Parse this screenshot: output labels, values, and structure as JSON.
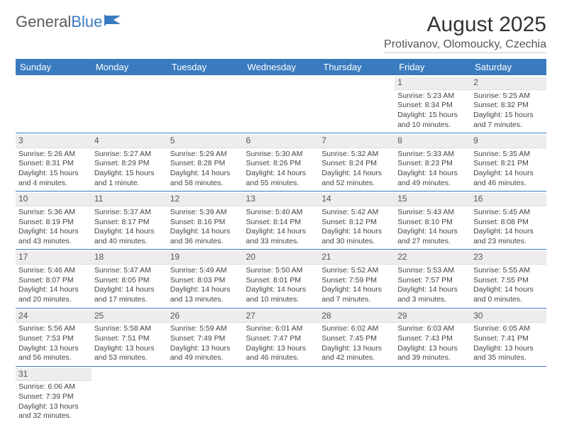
{
  "logo": {
    "text1": "General",
    "text2": "Blue"
  },
  "title": "August 2025",
  "location": "Protivanov, Olomoucky, Czechia",
  "colors": {
    "header_bg": "#3a7bbf",
    "header_text": "#ffffff",
    "daynum_bg": "#ededed",
    "row_border": "#3a7bbf",
    "body_text": "#444444",
    "page_bg": "#ffffff"
  },
  "typography": {
    "title_fontsize": 30,
    "location_fontsize": 16,
    "weekday_fontsize": 13,
    "cell_fontsize": 10.5,
    "daynum_fontsize": 12
  },
  "weekdays": [
    "Sunday",
    "Monday",
    "Tuesday",
    "Wednesday",
    "Thursday",
    "Friday",
    "Saturday"
  ],
  "weeks": [
    [
      null,
      null,
      null,
      null,
      null,
      {
        "day": "1",
        "sunrise": "Sunrise: 5:23 AM",
        "sunset": "Sunset: 8:34 PM",
        "daylight": "Daylight: 15 hours and 10 minutes."
      },
      {
        "day": "2",
        "sunrise": "Sunrise: 5:25 AM",
        "sunset": "Sunset: 8:32 PM",
        "daylight": "Daylight: 15 hours and 7 minutes."
      }
    ],
    [
      {
        "day": "3",
        "sunrise": "Sunrise: 5:26 AM",
        "sunset": "Sunset: 8:31 PM",
        "daylight": "Daylight: 15 hours and 4 minutes."
      },
      {
        "day": "4",
        "sunrise": "Sunrise: 5:27 AM",
        "sunset": "Sunset: 8:29 PM",
        "daylight": "Daylight: 15 hours and 1 minute."
      },
      {
        "day": "5",
        "sunrise": "Sunrise: 5:29 AM",
        "sunset": "Sunset: 8:28 PM",
        "daylight": "Daylight: 14 hours and 58 minutes."
      },
      {
        "day": "6",
        "sunrise": "Sunrise: 5:30 AM",
        "sunset": "Sunset: 8:26 PM",
        "daylight": "Daylight: 14 hours and 55 minutes."
      },
      {
        "day": "7",
        "sunrise": "Sunrise: 5:32 AM",
        "sunset": "Sunset: 8:24 PM",
        "daylight": "Daylight: 14 hours and 52 minutes."
      },
      {
        "day": "8",
        "sunrise": "Sunrise: 5:33 AM",
        "sunset": "Sunset: 8:23 PM",
        "daylight": "Daylight: 14 hours and 49 minutes."
      },
      {
        "day": "9",
        "sunrise": "Sunrise: 5:35 AM",
        "sunset": "Sunset: 8:21 PM",
        "daylight": "Daylight: 14 hours and 46 minutes."
      }
    ],
    [
      {
        "day": "10",
        "sunrise": "Sunrise: 5:36 AM",
        "sunset": "Sunset: 8:19 PM",
        "daylight": "Daylight: 14 hours and 43 minutes."
      },
      {
        "day": "11",
        "sunrise": "Sunrise: 5:37 AM",
        "sunset": "Sunset: 8:17 PM",
        "daylight": "Daylight: 14 hours and 40 minutes."
      },
      {
        "day": "12",
        "sunrise": "Sunrise: 5:39 AM",
        "sunset": "Sunset: 8:16 PM",
        "daylight": "Daylight: 14 hours and 36 minutes."
      },
      {
        "day": "13",
        "sunrise": "Sunrise: 5:40 AM",
        "sunset": "Sunset: 8:14 PM",
        "daylight": "Daylight: 14 hours and 33 minutes."
      },
      {
        "day": "14",
        "sunrise": "Sunrise: 5:42 AM",
        "sunset": "Sunset: 8:12 PM",
        "daylight": "Daylight: 14 hours and 30 minutes."
      },
      {
        "day": "15",
        "sunrise": "Sunrise: 5:43 AM",
        "sunset": "Sunset: 8:10 PM",
        "daylight": "Daylight: 14 hours and 27 minutes."
      },
      {
        "day": "16",
        "sunrise": "Sunrise: 5:45 AM",
        "sunset": "Sunset: 8:08 PM",
        "daylight": "Daylight: 14 hours and 23 minutes."
      }
    ],
    [
      {
        "day": "17",
        "sunrise": "Sunrise: 5:46 AM",
        "sunset": "Sunset: 8:07 PM",
        "daylight": "Daylight: 14 hours and 20 minutes."
      },
      {
        "day": "18",
        "sunrise": "Sunrise: 5:47 AM",
        "sunset": "Sunset: 8:05 PM",
        "daylight": "Daylight: 14 hours and 17 minutes."
      },
      {
        "day": "19",
        "sunrise": "Sunrise: 5:49 AM",
        "sunset": "Sunset: 8:03 PM",
        "daylight": "Daylight: 14 hours and 13 minutes."
      },
      {
        "day": "20",
        "sunrise": "Sunrise: 5:50 AM",
        "sunset": "Sunset: 8:01 PM",
        "daylight": "Daylight: 14 hours and 10 minutes."
      },
      {
        "day": "21",
        "sunrise": "Sunrise: 5:52 AM",
        "sunset": "Sunset: 7:59 PM",
        "daylight": "Daylight: 14 hours and 7 minutes."
      },
      {
        "day": "22",
        "sunrise": "Sunrise: 5:53 AM",
        "sunset": "Sunset: 7:57 PM",
        "daylight": "Daylight: 14 hours and 3 minutes."
      },
      {
        "day": "23",
        "sunrise": "Sunrise: 5:55 AM",
        "sunset": "Sunset: 7:55 PM",
        "daylight": "Daylight: 14 hours and 0 minutes."
      }
    ],
    [
      {
        "day": "24",
        "sunrise": "Sunrise: 5:56 AM",
        "sunset": "Sunset: 7:53 PM",
        "daylight": "Daylight: 13 hours and 56 minutes."
      },
      {
        "day": "25",
        "sunrise": "Sunrise: 5:58 AM",
        "sunset": "Sunset: 7:51 PM",
        "daylight": "Daylight: 13 hours and 53 minutes."
      },
      {
        "day": "26",
        "sunrise": "Sunrise: 5:59 AM",
        "sunset": "Sunset: 7:49 PM",
        "daylight": "Daylight: 13 hours and 49 minutes."
      },
      {
        "day": "27",
        "sunrise": "Sunrise: 6:01 AM",
        "sunset": "Sunset: 7:47 PM",
        "daylight": "Daylight: 13 hours and 46 minutes."
      },
      {
        "day": "28",
        "sunrise": "Sunrise: 6:02 AM",
        "sunset": "Sunset: 7:45 PM",
        "daylight": "Daylight: 13 hours and 42 minutes."
      },
      {
        "day": "29",
        "sunrise": "Sunrise: 6:03 AM",
        "sunset": "Sunset: 7:43 PM",
        "daylight": "Daylight: 13 hours and 39 minutes."
      },
      {
        "day": "30",
        "sunrise": "Sunrise: 6:05 AM",
        "sunset": "Sunset: 7:41 PM",
        "daylight": "Daylight: 13 hours and 35 minutes."
      }
    ],
    [
      {
        "day": "31",
        "sunrise": "Sunrise: 6:06 AM",
        "sunset": "Sunset: 7:39 PM",
        "daylight": "Daylight: 13 hours and 32 minutes."
      },
      null,
      null,
      null,
      null,
      null,
      null
    ]
  ]
}
